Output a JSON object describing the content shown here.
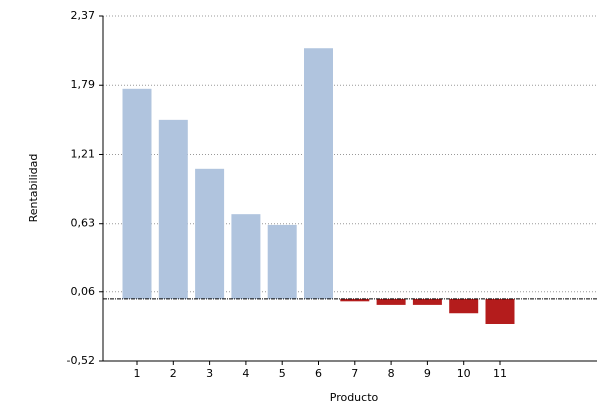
{
  "chart_data": {
    "type": "bar",
    "x_label": "Producto",
    "y_label": "Rentabilidad",
    "categories": [
      "1",
      "2",
      "3",
      "4",
      "5",
      "6",
      "7",
      "8",
      "9",
      "10",
      "11"
    ],
    "values": [
      1.76,
      1.5,
      1.09,
      0.71,
      0.62,
      2.1,
      -0.02,
      -0.05,
      -0.05,
      -0.12,
      -0.21
    ],
    "positive_color": "#b0c4de",
    "negative_color": "#b41c1c",
    "ylim": [
      -0.52,
      2.37
    ],
    "yticks": [
      {
        "value": -0.52,
        "label": "-0,52"
      },
      {
        "value": 0.06,
        "label": "0,06"
      },
      {
        "value": 0.63,
        "label": "0,63"
      },
      {
        "value": 1.21,
        "label": "1,21"
      },
      {
        "value": 1.79,
        "label": "1,79"
      },
      {
        "value": 2.37,
        "label": "2,37"
      }
    ],
    "grid": true
  }
}
